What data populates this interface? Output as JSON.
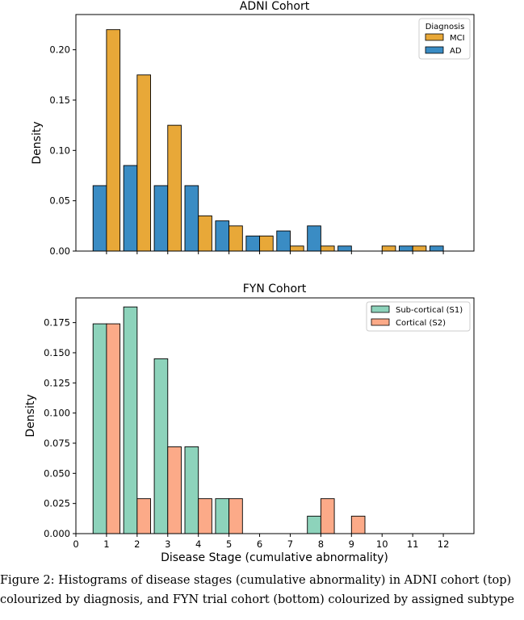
{
  "chart_data": [
    {
      "type": "bar",
      "title": "ADNI Cohort",
      "xlabel": "",
      "ylabel": "Density",
      "ylim": [
        0,
        0.235
      ],
      "xlim": [
        0,
        13
      ],
      "yticks": [
        "0.00",
        "0.05",
        "0.10",
        "0.15",
        "0.20"
      ],
      "ytick_values": [
        0,
        0.05,
        0.1,
        0.15,
        0.2
      ],
      "x": [
        1,
        2,
        3,
        4,
        5,
        6,
        7,
        8,
        9,
        10,
        11,
        12
      ],
      "legend_title": "Diagnosis",
      "legend_position": "top-right",
      "series": [
        {
          "name": "MCI",
          "color": "#e8a838",
          "values": [
            0.22,
            0.175,
            0.125,
            0.035,
            0.025,
            0.015,
            0.005,
            0.005,
            0,
            0.005,
            0.005,
            0
          ]
        },
        {
          "name": "AD",
          "color": "#3a8cc4",
          "values": [
            0.065,
            0.085,
            0.065,
            0.065,
            0.03,
            0.015,
            0.02,
            0.025,
            0.005,
            0,
            0.005,
            0.005
          ]
        }
      ],
      "bar_order": [
        "AD",
        "MCI"
      ]
    },
    {
      "type": "bar",
      "title": "FYN Cohort",
      "xlabel": "Disease Stage (cumulative abnormality)",
      "ylabel": "Density",
      "ylim": [
        0,
        0.1955
      ],
      "xlim": [
        0,
        13
      ],
      "yticks": [
        "0.000",
        "0.025",
        "0.050",
        "0.075",
        "0.100",
        "0.125",
        "0.150",
        "0.175"
      ],
      "ytick_values": [
        0,
        0.025,
        0.05,
        0.075,
        0.1,
        0.125,
        0.15,
        0.175
      ],
      "x": [
        1,
        2,
        3,
        4,
        5,
        6,
        7,
        8,
        9,
        10,
        11,
        12
      ],
      "xticks": [
        "0",
        "1",
        "2",
        "3",
        "4",
        "5",
        "6",
        "7",
        "8",
        "9",
        "10",
        "11",
        "12"
      ],
      "legend_position": "top-right",
      "series": [
        {
          "name": "Sub-cortical (S1)",
          "color": "#8dd3bb",
          "values": [
            0.174,
            0.188,
            0.145,
            0.072,
            0.029,
            0,
            0,
            0.0145,
            0,
            0,
            0,
            0
          ]
        },
        {
          "name": "Cortical (S2)",
          "color": "#fcaa88",
          "values": [
            0.174,
            0.029,
            0.072,
            0.029,
            0.029,
            0,
            0,
            0.029,
            0.0145,
            0,
            0,
            0
          ]
        }
      ],
      "bar_order": [
        "Sub-cortical (S1)",
        "Cortical (S2)"
      ]
    }
  ],
  "caption": {
    "line1": "Figure 2: Histograms of disease stages (cumulative abnormality) in ADNI cohort (top)",
    "line2": "colourized by diagnosis, and FYN trial cohort (bottom) colourized by assigned subtype"
  }
}
